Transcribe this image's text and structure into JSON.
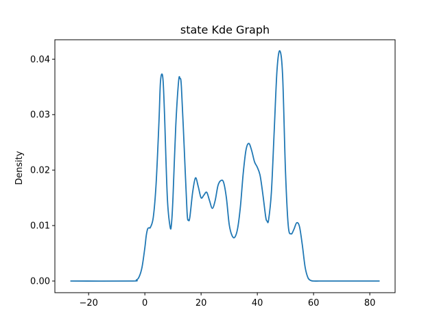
{
  "chart_data": {
    "type": "line",
    "title": "state Kde Graph",
    "xlabel": "",
    "ylabel": "Density",
    "xlim": [
      -32,
      89
    ],
    "ylim": [
      -0.0021,
      0.0435
    ],
    "xticks": [
      -20,
      0,
      20,
      40,
      60,
      80
    ],
    "yticks": [
      0.0,
      0.01,
      0.02,
      0.03,
      0.04
    ],
    "xtick_labels": [
      "−20",
      "0",
      "20",
      "40",
      "60",
      "80"
    ],
    "ytick_labels": [
      "0.00",
      "0.01",
      "0.02",
      "0.03",
      "0.04"
    ],
    "grid": false,
    "line_color": "#1f77b4",
    "series": [
      {
        "x": [
          -26.5,
          -5,
          -3,
          -2,
          -1,
          0,
          0.5,
          1,
          1.5,
          2,
          3,
          4,
          5,
          5.5,
          6,
          6.5,
          7,
          8,
          9,
          9.5,
          10,
          11,
          12,
          12.5,
          13,
          14,
          15,
          15.5,
          16,
          17,
          18,
          19,
          20,
          21,
          22,
          23,
          24,
          25,
          26,
          27,
          28,
          29,
          30,
          31,
          32,
          33,
          34,
          35,
          36,
          37,
          38,
          39,
          40,
          41,
          42,
          43,
          43.5,
          44,
          45,
          46,
          47,
          48,
          49,
          50,
          51,
          52,
          53,
          54,
          55,
          56,
          57,
          58,
          59,
          60,
          62,
          65,
          70,
          83.5
        ],
        "y": [
          0.0,
          0.0,
          0.0002,
          0.0008,
          0.0025,
          0.006,
          0.0082,
          0.0094,
          0.0096,
          0.0097,
          0.0115,
          0.0175,
          0.0285,
          0.0355,
          0.0373,
          0.036,
          0.03,
          0.015,
          0.0097,
          0.0105,
          0.015,
          0.028,
          0.036,
          0.0365,
          0.035,
          0.024,
          0.0125,
          0.011,
          0.0115,
          0.016,
          0.0186,
          0.017,
          0.015,
          0.0155,
          0.016,
          0.0145,
          0.0131,
          0.0145,
          0.0172,
          0.0181,
          0.0178,
          0.015,
          0.0102,
          0.0082,
          0.0079,
          0.0095,
          0.0135,
          0.0195,
          0.0237,
          0.0248,
          0.0235,
          0.0215,
          0.0205,
          0.019,
          0.0155,
          0.0115,
          0.0108,
          0.011,
          0.016,
          0.027,
          0.038,
          0.0415,
          0.037,
          0.02,
          0.01,
          0.0085,
          0.0093,
          0.0105,
          0.0098,
          0.0065,
          0.0025,
          0.0006,
          0.0001,
          0.0,
          0.0,
          0.0,
          0.0,
          0.0
        ]
      }
    ]
  }
}
